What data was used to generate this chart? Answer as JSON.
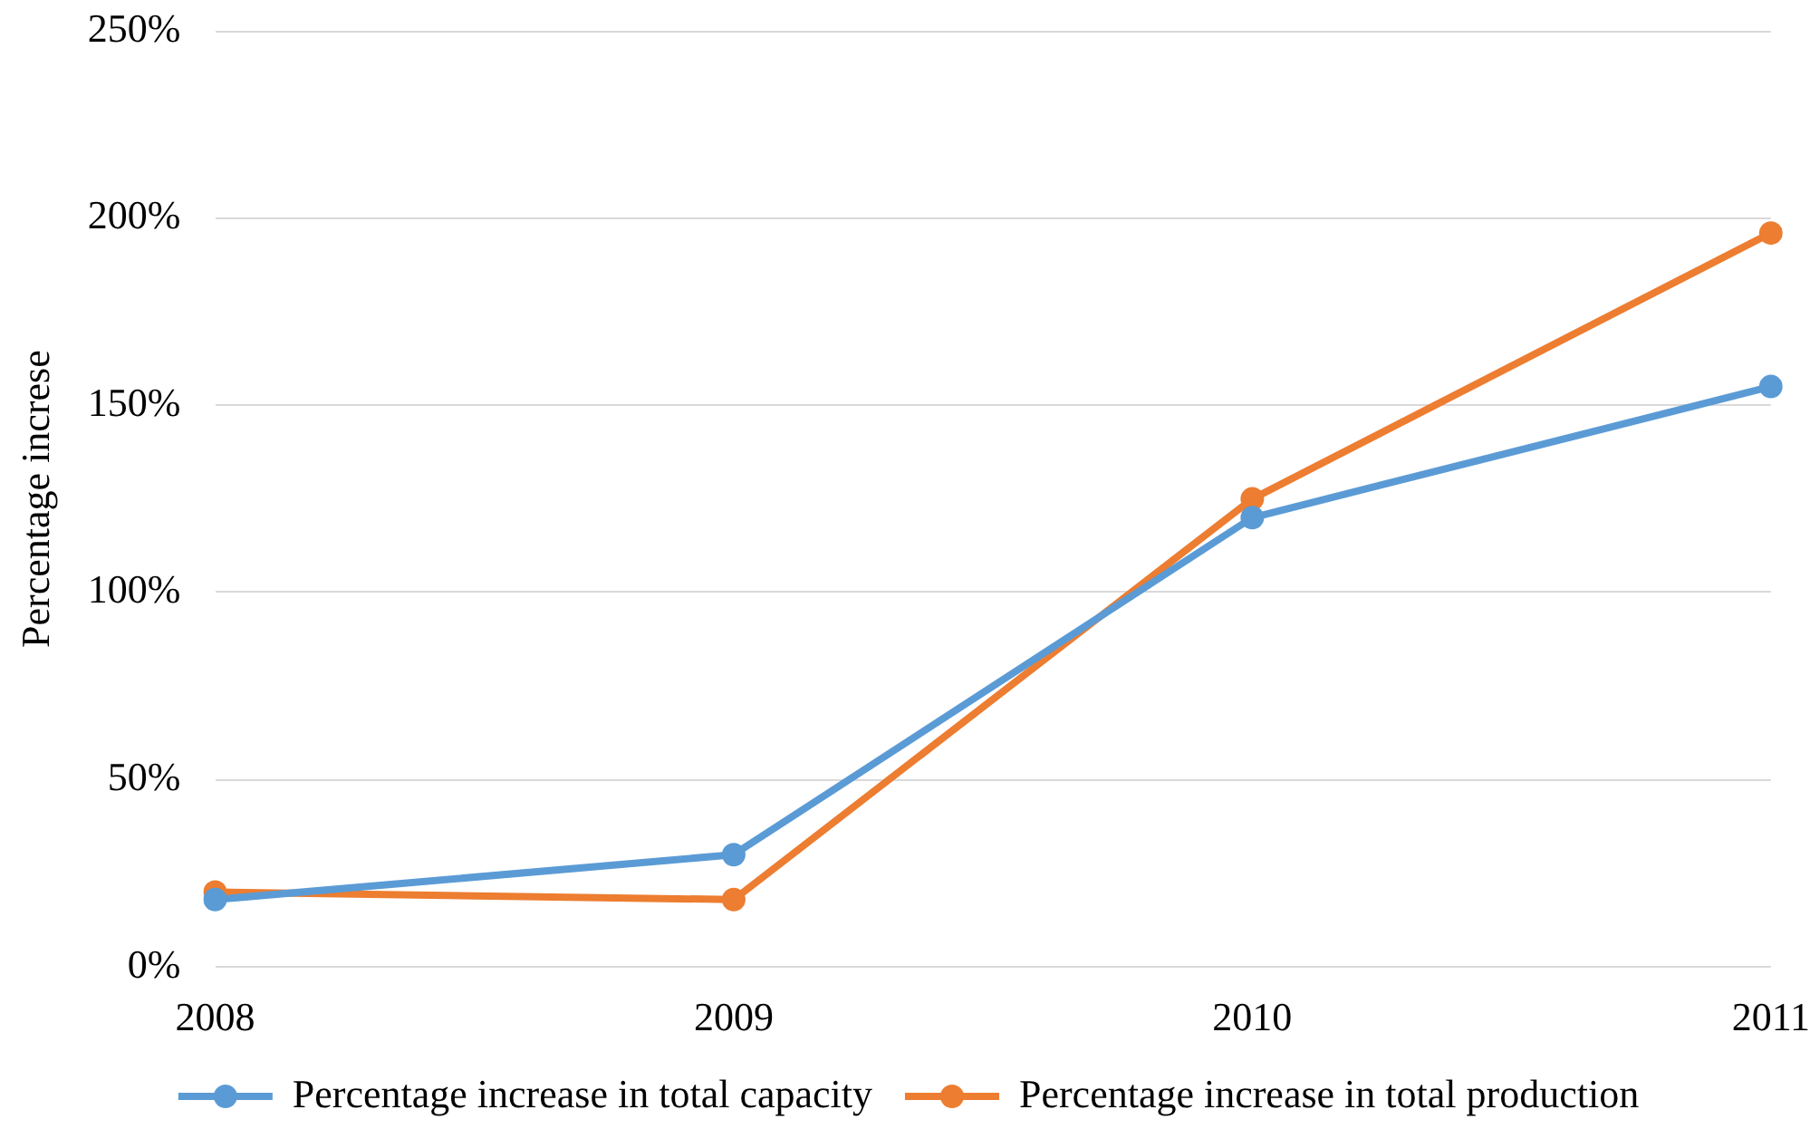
{
  "chart_data": {
    "type": "line",
    "ylabel": "Percentage increse",
    "categories": [
      "2008",
      "2009",
      "2010",
      "2011"
    ],
    "series": [
      {
        "name": "Percentage increase in total capacity",
        "color": "#5b9bd5",
        "values": [
          18,
          30,
          120,
          155
        ]
      },
      {
        "name": "Percentage increase in total production",
        "color": "#ed7d31",
        "values": [
          20,
          18,
          125,
          196
        ]
      }
    ],
    "ylim": [
      0,
      250
    ],
    "yticks": [
      {
        "value": 0,
        "label": "0%"
      },
      {
        "value": 50,
        "label": "50%"
      },
      {
        "value": 100,
        "label": "100%"
      },
      {
        "value": 150,
        "label": "150%"
      },
      {
        "value": 200,
        "label": "200%"
      },
      {
        "value": 250,
        "label": "250%"
      }
    ],
    "grid": "y",
    "legend": "bottom",
    "marker": "circle",
    "line_style": "solid"
  }
}
